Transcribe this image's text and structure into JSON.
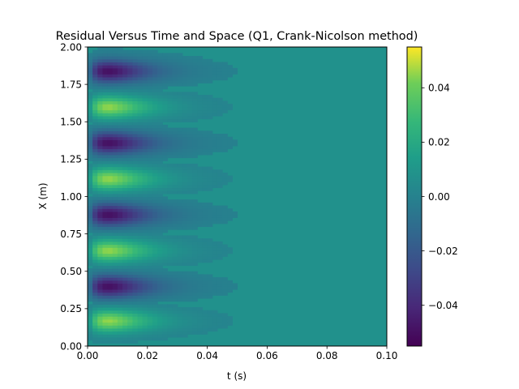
{
  "chart_data": {
    "type": "heatmap",
    "title": "Residual Versus Time and Space (Q1, Crank-Nicolson method)",
    "xlabel": "t (s)",
    "ylabel": "X (m)",
    "xlim": [
      0.0,
      0.1
    ],
    "ylim": [
      0.0,
      2.0
    ],
    "x_ticks": [
      "0.00",
      "0.02",
      "0.04",
      "0.06",
      "0.08",
      "0.10"
    ],
    "y_ticks": [
      "0.00",
      "0.25",
      "0.50",
      "0.75",
      "1.00",
      "1.25",
      "1.50",
      "1.75",
      "2.00"
    ],
    "colormap": "viridis",
    "color_range": [
      -0.055,
      0.055
    ],
    "colorbar_ticks": [
      "−0.04",
      "−0.02",
      "0.00",
      "0.02",
      "0.04"
    ],
    "colorbar_tick_values": [
      -0.04,
      -0.02,
      0.0,
      0.02,
      0.04
    ],
    "field": {
      "description_of_pattern": "alternating positive/negative bands along X, decaying in t",
      "bands": [
        {
          "x_center": 0.17,
          "peak": 0.045
        },
        {
          "x_center": 0.4,
          "peak": -0.05
        },
        {
          "x_center": 0.64,
          "peak": 0.045
        },
        {
          "x_center": 0.88,
          "peak": -0.05
        },
        {
          "x_center": 1.12,
          "peak": 0.045
        },
        {
          "x_center": 1.36,
          "peak": -0.05
        },
        {
          "x_center": 1.6,
          "peak": 0.045
        },
        {
          "x_center": 1.84,
          "peak": -0.05
        }
      ],
      "peak_time": 0.007,
      "decay_time": 0.02
    }
  }
}
